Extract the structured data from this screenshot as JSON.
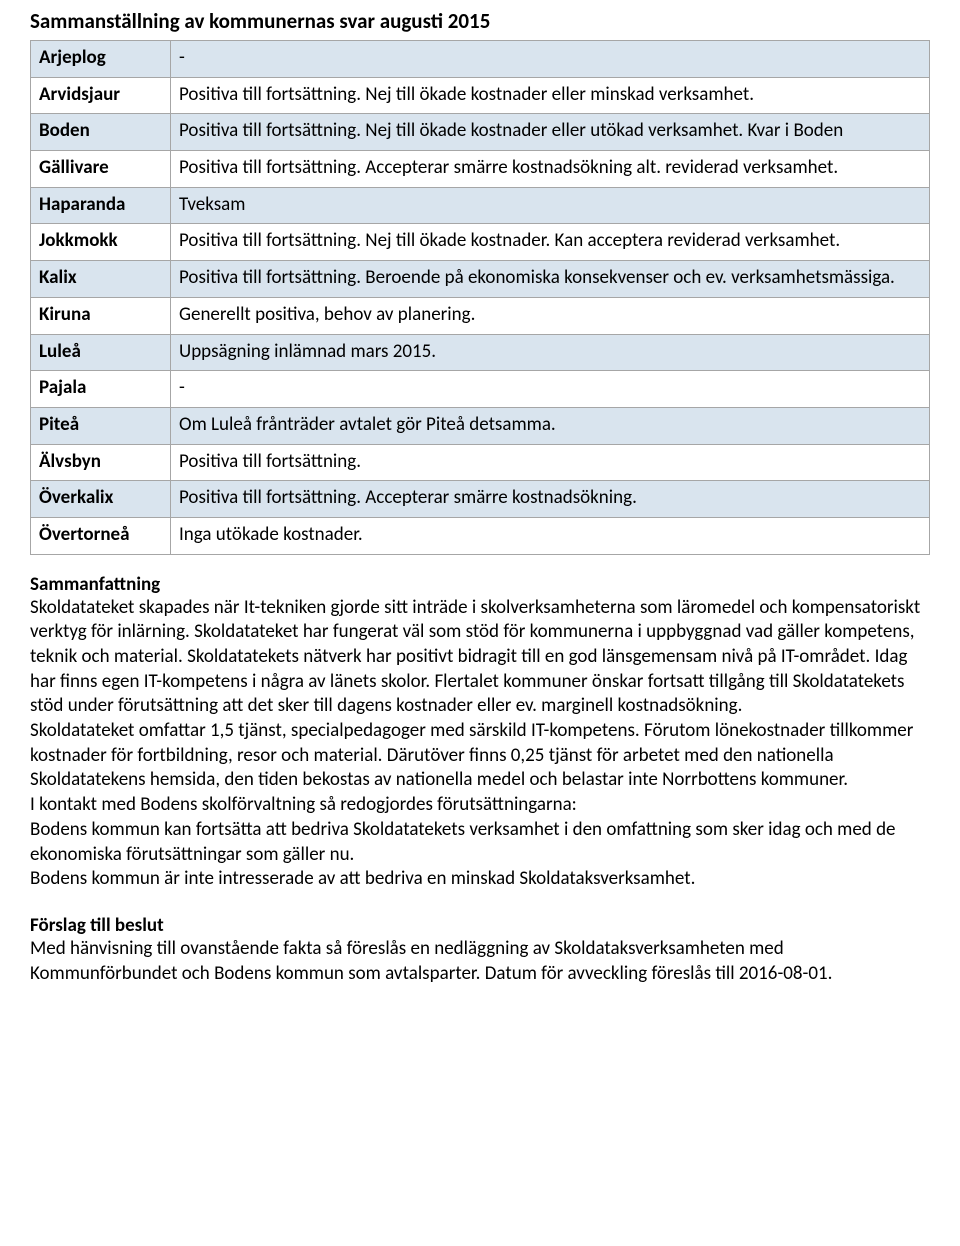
{
  "title": "Sammanställning av kommunernas svar augusti 2015",
  "table": {
    "row_bg_shaded": "#d9e4ee",
    "border_color": "#a6a6a6",
    "rows": [
      {
        "key": "Arjeplog",
        "value": "-",
        "shaded": true
      },
      {
        "key": "Arvidsjaur",
        "value": "Positiva till fortsättning. Nej till ökade kostnader eller minskad verksamhet.",
        "shaded": false
      },
      {
        "key": "Boden",
        "value": "Positiva till fortsättning. Nej till ökade kostnader eller utökad verksamhet. Kvar i Boden",
        "shaded": true
      },
      {
        "key": "Gällivare",
        "value": "Positiva till fortsättning. Accepterar smärre kostnadsökning alt. reviderad verksamhet.",
        "shaded": false
      },
      {
        "key": "Haparanda",
        "value": "Tveksam",
        "shaded": true
      },
      {
        "key": "Jokkmokk",
        "value": "Positiva till fortsättning. Nej till ökade kostnader. Kan acceptera reviderad verksamhet.",
        "shaded": false
      },
      {
        "key": "Kalix",
        "value": "Positiva till fortsättning. Beroende på ekonomiska konsekvenser och ev. verksamhetsmässiga.",
        "shaded": true
      },
      {
        "key": "Kiruna",
        "value": "Generellt positiva, behov av planering.",
        "shaded": false
      },
      {
        "key": "Luleå",
        "value": " Uppsägning inlämnad mars 2015.",
        "shaded": true
      },
      {
        "key": "Pajala",
        "value": " -",
        "shaded": false
      },
      {
        "key": "Piteå",
        "value": "Om Luleå frånträder avtalet gör Piteå detsamma.",
        "shaded": true
      },
      {
        "key": "Älvsbyn",
        "value": "Positiva till fortsättning.",
        "shaded": false
      },
      {
        "key": "Överkalix",
        "value": "Positiva till fortsättning. Accepterar smärre kostnadsökning.",
        "shaded": true
      },
      {
        "key": "Övertorneå",
        "value": "Inga utökade kostnader.",
        "shaded": false
      }
    ]
  },
  "summary": {
    "heading": "Sammanfattning",
    "text": "Skoldatateket skapades när It-tekniken gjorde sitt inträde i skolverksamheterna som läromedel och kompensatoriskt verktyg för inlärning. Skoldatateket har fungerat väl som stöd för kommunerna i uppbyggnad vad gäller kompetens, teknik och material. Skoldatatekets nätverk har positivt bidragit till en god länsgemensam nivå på IT-området. Idag har finns egen IT-kompetens i några av länets skolor. Flertalet kommuner önskar fortsatt tillgång till Skoldatatekets stöd under förutsättning att det sker till dagens kostnader eller ev. marginell kostnadsökning.",
    "text2": "Skoldatateket omfattar 1,5 tjänst, specialpedagoger med särskild IT-kompetens. Förutom lönekostnader tillkommer kostnader för fortbildning, resor och material. Därutöver finns 0,25 tjänst för arbetet med den nationella Skoldatatekens hemsida, den tiden bekostas av nationella medel och belastar inte Norrbottens kommuner.",
    "text3": "I kontakt med Bodens skolförvaltning så redogjordes förutsättningarna:",
    "text4": "Bodens kommun kan fortsätta att bedriva Skoldatatekets verksamhet i den omfattning som sker idag och med de ekonomiska förutsättningar som gäller nu.",
    "text5": "Bodens kommun är inte intresserade av att bedriva en minskad Skoldataksverksamhet."
  },
  "proposal": {
    "heading": "Förslag till beslut",
    "text": "Med hänvisning till ovanstående fakta så föreslås en nedläggning av Skoldataksverksamheten med Kommunförbundet och Bodens kommun som avtalsparter. Datum för avveckling föreslås till 2016-08-01."
  }
}
